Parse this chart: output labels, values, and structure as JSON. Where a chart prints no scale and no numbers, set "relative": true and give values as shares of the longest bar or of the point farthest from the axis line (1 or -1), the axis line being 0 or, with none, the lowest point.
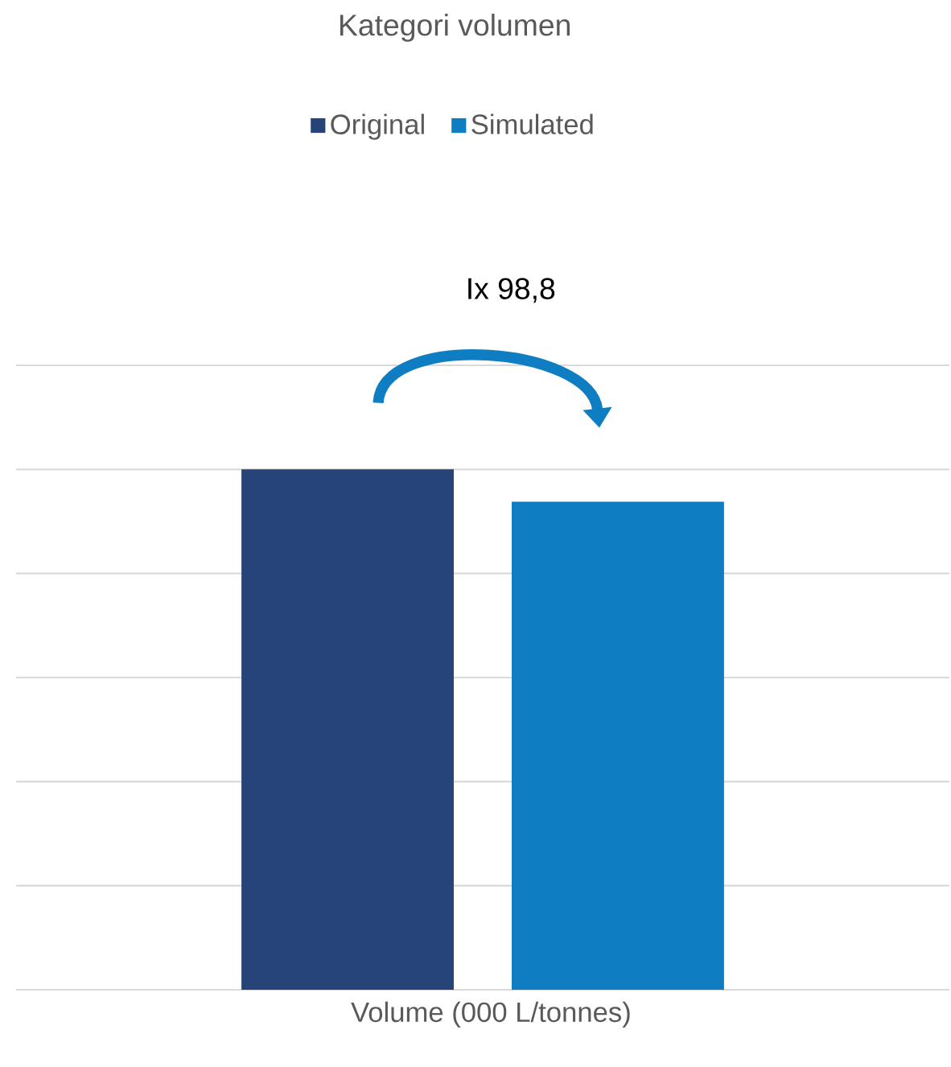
{
  "chart_data": {
    "type": "bar",
    "title": "Kategori volumen",
    "xlabel": "Volume (000 L/tonnes)",
    "categories": [
      null
    ],
    "series": [
      {
        "name": "Original",
        "color": "#264478",
        "values": [
          1
        ]
      },
      {
        "name": "Simulated",
        "color": "#0F7DC2",
        "values": [
          0.938
        ]
      }
    ],
    "relative": true,
    "grid": "y",
    "legend": "top",
    "annotations": [
      "Ix 98,8"
    ]
  }
}
